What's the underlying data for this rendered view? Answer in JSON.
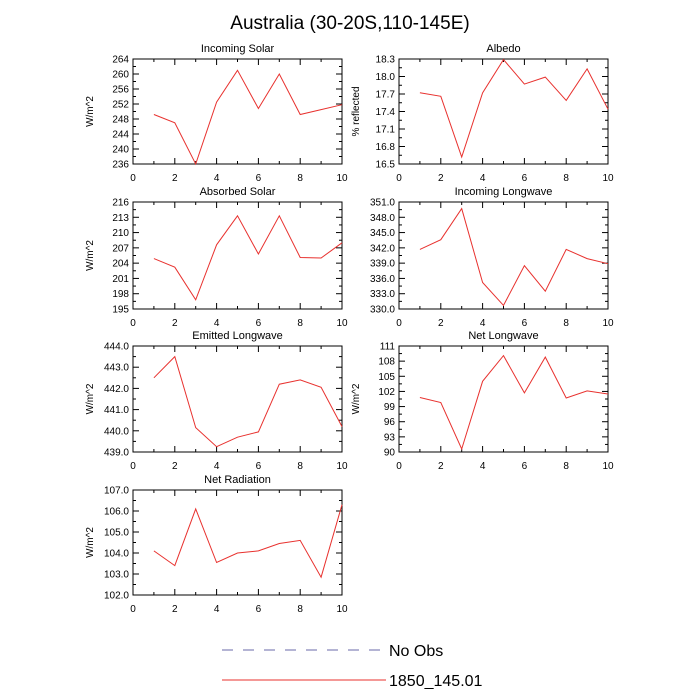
{
  "figure": {
    "title": "Australia (30-20S,110-145E)"
  },
  "legend": {
    "items": [
      {
        "label": "No Obs",
        "color": "#6a6aa8",
        "dash": true
      },
      {
        "label": "1850_145.01",
        "color": "#e8312e",
        "dash": false
      }
    ]
  },
  "chart_data": [
    {
      "type": "line",
      "title": "Incoming Solar",
      "ylabel": "W/m^2",
      "xlim": [
        0,
        10
      ],
      "ylim": [
        236,
        264
      ],
      "yticks": [
        "264",
        "260",
        "256",
        "252",
        "248",
        "244",
        "240",
        "236"
      ],
      "xticks": [
        "0",
        "2",
        "4",
        "6",
        "8",
        "10"
      ],
      "series": [
        {
          "name": "1850_145.01",
          "color": "#e8312e",
          "x": [
            1,
            2,
            3,
            4,
            5,
            6,
            7,
            8,
            9,
            10
          ],
          "y": [
            249.2,
            247,
            236,
            252.5,
            261,
            250.8,
            260,
            249.2,
            250.5,
            251.8
          ]
        }
      ]
    },
    {
      "type": "line",
      "title": "Albedo",
      "ylabel": "% reflected",
      "xlim": [
        0,
        10
      ],
      "ylim": [
        16.5,
        18.3
      ],
      "yticks": [
        "18.3",
        "18.0",
        "17.7",
        "17.4",
        "17.1",
        "16.8",
        "16.5"
      ],
      "xticks": [
        "0",
        "2",
        "4",
        "6",
        "8",
        "10"
      ],
      "series": [
        {
          "name": "1850_145.01",
          "color": "#e8312e",
          "x": [
            1,
            2,
            3,
            4,
            5,
            6,
            7,
            8,
            9,
            10
          ],
          "y": [
            17.72,
            17.66,
            16.62,
            17.72,
            18.29,
            17.87,
            17.99,
            17.59,
            18.13,
            17.44
          ]
        }
      ]
    },
    {
      "type": "line",
      "title": "Absorbed Solar",
      "ylabel": "W/m^2",
      "xlim": [
        0,
        10
      ],
      "ylim": [
        195,
        216
      ],
      "yticks": [
        "216",
        "213",
        "210",
        "207",
        "204",
        "201",
        "198",
        "195"
      ],
      "xticks": [
        "0",
        "2",
        "4",
        "6",
        "8",
        "10"
      ],
      "series": [
        {
          "name": "1850_145.01",
          "color": "#e8312e",
          "x": [
            1,
            2,
            3,
            4,
            5,
            6,
            7,
            8,
            9,
            10
          ],
          "y": [
            204.9,
            203.2,
            196.8,
            207.6,
            213.3,
            205.8,
            213.3,
            205.1,
            205.0,
            208.0
          ]
        }
      ]
    },
    {
      "type": "line",
      "title": "Incoming Longwave",
      "ylabel": "",
      "xlim": [
        0,
        10
      ],
      "ylim": [
        330.0,
        351.0
      ],
      "yticks": [
        "351.0",
        "348.0",
        "345.0",
        "342.0",
        "339.0",
        "336.0",
        "333.0",
        "330.0"
      ],
      "xticks": [
        "0",
        "2",
        "4",
        "6",
        "8",
        "10"
      ],
      "series": [
        {
          "name": "1850_145.01",
          "color": "#e8312e",
          "x": [
            1,
            2,
            3,
            4,
            5,
            6,
            7,
            8,
            9,
            10
          ],
          "y": [
            341.7,
            343.6,
            349.7,
            335.2,
            330.7,
            338.5,
            333.5,
            341.7,
            339.9,
            338.9
          ]
        }
      ]
    },
    {
      "type": "line",
      "title": "Emitted Longwave",
      "ylabel": "W/m^2",
      "xlim": [
        0,
        10
      ],
      "ylim": [
        439.0,
        444.0
      ],
      "yticks": [
        "444.0",
        "443.0",
        "442.0",
        "441.0",
        "440.0",
        "439.0"
      ],
      "xticks": [
        "0",
        "2",
        "4",
        "6",
        "8",
        "10"
      ],
      "series": [
        {
          "name": "1850_145.01",
          "color": "#e8312e",
          "x": [
            1,
            2,
            3,
            4,
            5,
            6,
            7,
            8,
            9,
            10
          ],
          "y": [
            442.5,
            443.5,
            440.15,
            439.25,
            439.7,
            439.95,
            442.2,
            442.4,
            442.05,
            440.2
          ]
        }
      ]
    },
    {
      "type": "line",
      "title": "Net Longwave",
      "ylabel": "W/m^2",
      "xlim": [
        0,
        10
      ],
      "ylim": [
        90,
        111
      ],
      "yticks": [
        "111",
        "108",
        "105",
        "102",
        "99",
        "96",
        "93",
        "90"
      ],
      "xticks": [
        "0",
        "2",
        "4",
        "6",
        "8",
        "10"
      ],
      "series": [
        {
          "name": "1850_145.01",
          "color": "#e8312e",
          "x": [
            1,
            2,
            3,
            4,
            5,
            6,
            7,
            8,
            9,
            10
          ],
          "y": [
            100.8,
            99.8,
            90.6,
            104.0,
            109.1,
            101.7,
            108.8,
            100.7,
            102.1,
            101.5
          ]
        }
      ]
    },
    {
      "type": "line",
      "title": "Net Radiation",
      "ylabel": "W/m^2",
      "xlim": [
        0,
        10
      ],
      "ylim": [
        102.0,
        107.0
      ],
      "yticks": [
        "107.0",
        "106.0",
        "105.0",
        "104.0",
        "103.0",
        "102.0"
      ],
      "xticks": [
        "0",
        "2",
        "4",
        "6",
        "8",
        "10"
      ],
      "series": [
        {
          "name": "1850_145.01",
          "color": "#e8312e",
          "x": [
            1,
            2,
            3,
            4,
            5,
            6,
            7,
            8,
            9,
            10
          ],
          "y": [
            104.1,
            103.4,
            106.1,
            103.55,
            104.0,
            104.1,
            104.45,
            104.6,
            102.85,
            106.3
          ]
        }
      ]
    }
  ]
}
